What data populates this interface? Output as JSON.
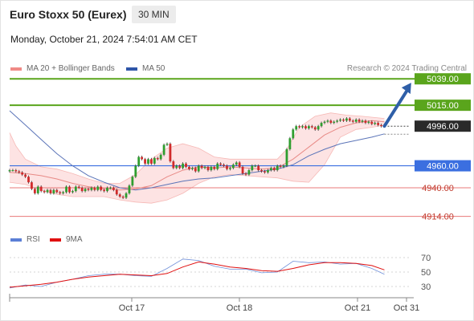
{
  "header": {
    "title": "Euro Stoxx 50 (Eurex)",
    "timeframe": "30 MIN",
    "datetime": "Monday, October 21, 2024 7:54:01 AM CET"
  },
  "legend": {
    "items": [
      {
        "label": "MA 20 + Bollinger Bands",
        "color": "#f08a86"
      },
      {
        "label": "MA 50",
        "color": "#2f56a8"
      }
    ],
    "credit": "Research © 2024 Trading Central"
  },
  "indicator_legend": {
    "items": [
      {
        "label": "RSI",
        "color": "#5b7fd6"
      },
      {
        "label": "9MA",
        "color": "#e01010"
      }
    ]
  },
  "colors": {
    "resistance": "#5aa51c",
    "pivot": "#3b6fe0",
    "support": "#e87878",
    "current": "#2a2a2a",
    "up_candle": "#2f9e2f",
    "down_candle": "#d12b2b",
    "band_fill": "#fde3e3",
    "arrow": "#2f5fa8"
  },
  "chart_data": [
    {
      "type": "candlestick",
      "ylim": [
        4905,
        5045
      ],
      "x_tick_labels": [
        "Oct 17",
        "Oct 18",
        "Oct 21",
        "Oct 31"
      ],
      "levels": [
        {
          "value": 5039.0,
          "label": "5039.00",
          "kind": "resistance"
        },
        {
          "value": 5015.0,
          "label": "5015.00",
          "kind": "resistance"
        },
        {
          "value": 4996.0,
          "label": "4996.00",
          "kind": "current"
        },
        {
          "value": 4960.0,
          "label": "4960.00",
          "kind": "pivot"
        },
        {
          "value": 4940.0,
          "label": "4940.00",
          "kind": "support"
        },
        {
          "value": 4914.0,
          "label": "4914.00",
          "kind": "support"
        }
      ],
      "candles": [
        [
          4955,
          4956
        ],
        [
          4956,
          4956
        ],
        [
          4956,
          4955
        ],
        [
          4955,
          4954
        ],
        [
          4954,
          4952
        ],
        [
          4952,
          4950
        ],
        [
          4950,
          4945
        ],
        [
          4945,
          4939
        ],
        [
          4939,
          4935
        ],
        [
          4935,
          4941
        ],
        [
          4941,
          4937
        ],
        [
          4937,
          4936
        ],
        [
          4936,
          4938
        ],
        [
          4938,
          4935
        ],
        [
          4935,
          4938
        ],
        [
          4938,
          4936
        ],
        [
          4936,
          4935
        ],
        [
          4935,
          4936
        ],
        [
          4936,
          4941
        ],
        [
          4941,
          4936
        ],
        [
          4936,
          4937
        ],
        [
          4937,
          4941
        ],
        [
          4941,
          4940
        ],
        [
          4940,
          4937
        ],
        [
          4937,
          4939
        ],
        [
          4939,
          4938
        ],
        [
          4938,
          4940
        ],
        [
          4940,
          4938
        ],
        [
          4938,
          4941
        ],
        [
          4941,
          4938
        ],
        [
          4938,
          4937
        ],
        [
          4937,
          4940
        ],
        [
          4940,
          4940
        ],
        [
          4940,
          4938
        ],
        [
          4938,
          4934
        ],
        [
          4934,
          4932
        ],
        [
          4932,
          4931
        ],
        [
          4931,
          4935
        ],
        [
          4935,
          4942
        ],
        [
          4942,
          4950
        ],
        [
          4950,
          4960
        ],
        [
          4960,
          4968
        ],
        [
          4968,
          4966
        ],
        [
          4966,
          4962
        ],
        [
          4962,
          4966
        ],
        [
          4966,
          4962
        ],
        [
          4962,
          4967
        ],
        [
          4967,
          4966
        ],
        [
          4966,
          4970
        ],
        [
          4970,
          4979
        ],
        [
          4979,
          4980
        ],
        [
          4980,
          4964
        ],
        [
          4964,
          4958
        ],
        [
          4958,
          4960
        ],
        [
          4960,
          4958
        ],
        [
          4958,
          4962
        ],
        [
          4962,
          4959
        ],
        [
          4959,
          4957
        ],
        [
          4957,
          4958
        ],
        [
          4958,
          4955
        ],
        [
          4955,
          4960
        ],
        [
          4960,
          4958
        ],
        [
          4958,
          4959
        ],
        [
          4959,
          4956
        ],
        [
          4956,
          4959
        ],
        [
          4959,
          4957
        ],
        [
          4957,
          4962
        ],
        [
          4962,
          4961
        ],
        [
          4961,
          4960
        ],
        [
          4960,
          4957
        ],
        [
          4957,
          4958
        ],
        [
          4958,
          4961
        ],
        [
          4961,
          4963
        ],
        [
          4963,
          4959
        ],
        [
          4959,
          4953
        ],
        [
          4953,
          4952
        ],
        [
          4952,
          4956
        ],
        [
          4956,
          4960
        ],
        [
          4960,
          4960
        ],
        [
          4960,
          4956
        ],
        [
          4956,
          4955
        ],
        [
          4955,
          4954
        ],
        [
          4954,
          4956
        ],
        [
          4956,
          4958
        ],
        [
          4958,
          4956
        ],
        [
          4956,
          4960
        ],
        [
          4960,
          4959
        ],
        [
          4959,
          4960
        ],
        [
          4960,
          4975
        ],
        [
          4975,
          4985
        ],
        [
          4985,
          4993
        ],
        [
          4993,
          4996
        ],
        [
          4996,
          4995
        ],
        [
          4995,
          4996
        ],
        [
          4996,
          4994
        ],
        [
          4994,
          4996
        ],
        [
          4996,
          4995
        ],
        [
          4995,
          4993
        ],
        [
          4993,
          4996
        ],
        [
          4996,
          4999
        ],
        [
          4999,
          5000
        ],
        [
          5000,
          5001
        ],
        [
          5001,
          4999
        ],
        [
          4999,
          5000
        ],
        [
          5000,
          5001
        ],
        [
          5001,
          5002
        ],
        [
          5002,
          5001
        ],
        [
          5001,
          5003
        ],
        [
          5003,
          5001
        ],
        [
          5001,
          5000
        ],
        [
          5000,
          5002
        ],
        [
          5002,
          5000
        ],
        [
          5000,
          5001
        ],
        [
          5001,
          4999
        ],
        [
          4999,
          5000
        ],
        [
          5000,
          4998
        ],
        [
          4998,
          4999
        ],
        [
          4999,
          4997
        ],
        [
          4997,
          4996
        ]
      ],
      "ma20": [
        [
          0,
          4954
        ],
        [
          5,
          4953
        ],
        [
          10,
          4951
        ],
        [
          15,
          4948
        ],
        [
          20,
          4944
        ],
        [
          25,
          4941
        ],
        [
          30,
          4939
        ],
        [
          35,
          4938
        ],
        [
          40,
          4939
        ],
        [
          45,
          4942
        ],
        [
          50,
          4950
        ],
        [
          55,
          4956
        ],
        [
          60,
          4959
        ],
        [
          65,
          4958
        ],
        [
          70,
          4959
        ],
        [
          75,
          4958
        ],
        [
          80,
          4957
        ],
        [
          85,
          4958
        ],
        [
          90,
          4966
        ],
        [
          95,
          4977
        ],
        [
          100,
          4988
        ],
        [
          105,
          4995
        ],
        [
          110,
          4999
        ],
        [
          115,
          5001
        ],
        [
          119,
          5000
        ]
      ],
      "bb_upper": [
        [
          0,
          4990
        ],
        [
          2,
          4978
        ],
        [
          5,
          4966
        ],
        [
          10,
          4959
        ],
        [
          15,
          4957
        ],
        [
          20,
          4953
        ],
        [
          25,
          4948
        ],
        [
          30,
          4944
        ],
        [
          35,
          4944
        ],
        [
          40,
          4952
        ],
        [
          45,
          4966
        ],
        [
          50,
          4976
        ],
        [
          55,
          4980
        ],
        [
          60,
          4976
        ],
        [
          65,
          4968
        ],
        [
          70,
          4966
        ],
        [
          75,
          4966
        ],
        [
          80,
          4966
        ],
        [
          85,
          4966
        ],
        [
          88,
          4975
        ],
        [
          92,
          4995
        ],
        [
          97,
          5005
        ],
        [
          102,
          5008
        ],
        [
          107,
          5006
        ],
        [
          112,
          5005
        ],
        [
          119,
          5003
        ]
      ],
      "bb_lower": [
        [
          0,
          4945
        ],
        [
          5,
          4943
        ],
        [
          10,
          4938
        ],
        [
          15,
          4934
        ],
        [
          20,
          4932
        ],
        [
          25,
          4932
        ],
        [
          30,
          4932
        ],
        [
          35,
          4929
        ],
        [
          40,
          4927
        ],
        [
          45,
          4926
        ],
        [
          50,
          4929
        ],
        [
          55,
          4935
        ],
        [
          60,
          4944
        ],
        [
          65,
          4950
        ],
        [
          70,
          4952
        ],
        [
          75,
          4951
        ],
        [
          80,
          4950
        ],
        [
          85,
          4949
        ],
        [
          90,
          4946
        ],
        [
          95,
          4945
        ],
        [
          100,
          4961
        ],
        [
          105,
          4986
        ],
        [
          110,
          4993
        ],
        [
          115,
          4995
        ],
        [
          119,
          4997
        ]
      ],
      "ma50": [
        [
          0,
          5010
        ],
        [
          5,
          4997
        ],
        [
          10,
          4984
        ],
        [
          15,
          4971
        ],
        [
          20,
          4960
        ],
        [
          25,
          4951
        ],
        [
          30,
          4945
        ],
        [
          35,
          4940
        ],
        [
          40,
          4938
        ],
        [
          45,
          4940
        ],
        [
          50,
          4943
        ],
        [
          55,
          4946
        ],
        [
          60,
          4948
        ],
        [
          65,
          4949
        ],
        [
          70,
          4951
        ],
        [
          75,
          4953
        ],
        [
          80,
          4955
        ],
        [
          85,
          4957
        ],
        [
          90,
          4961
        ],
        [
          95,
          4969
        ],
        [
          100,
          4975
        ],
        [
          105,
          4980
        ],
        [
          110,
          4983
        ],
        [
          115,
          4986
        ],
        [
          119,
          4989
        ]
      ],
      "projection": {
        "from": [
          119,
          4996
        ],
        "to": [
          127,
          5034
        ]
      }
    },
    {
      "type": "line",
      "title": "RSI",
      "ylim": [
        20,
        80
      ],
      "y_ticks": [
        30,
        50,
        70
      ],
      "series": [
        {
          "name": "RSI",
          "values": [
            [
              0,
              28
            ],
            [
              5,
              32
            ],
            [
              10,
              30
            ],
            [
              15,
              36
            ],
            [
              20,
              40
            ],
            [
              25,
              45
            ],
            [
              30,
              47
            ],
            [
              35,
              47
            ],
            [
              40,
              45
            ],
            [
              45,
              44
            ],
            [
              50,
              55
            ],
            [
              55,
              68
            ],
            [
              60,
              66
            ],
            [
              65,
              58
            ],
            [
              70,
              54
            ],
            [
              75,
              54
            ],
            [
              80,
              49
            ],
            [
              85,
              50
            ],
            [
              90,
              65
            ],
            [
              95,
              63
            ],
            [
              100,
              64
            ],
            [
              105,
              61
            ],
            [
              110,
              62
            ],
            [
              115,
              55
            ],
            [
              119,
              47
            ]
          ]
        },
        {
          "name": "9MA",
          "values": [
            [
              0,
              29
            ],
            [
              5,
              31
            ],
            [
              10,
              33
            ],
            [
              15,
              36
            ],
            [
              20,
              40
            ],
            [
              25,
              43
            ],
            [
              30,
              45
            ],
            [
              35,
              47
            ],
            [
              40,
              46
            ],
            [
              45,
              45
            ],
            [
              50,
              48
            ],
            [
              55,
              57
            ],
            [
              60,
              64
            ],
            [
              65,
              61
            ],
            [
              70,
              57
            ],
            [
              75,
              55
            ],
            [
              80,
              52
            ],
            [
              85,
              51
            ],
            [
              90,
              55
            ],
            [
              95,
              60
            ],
            [
              100,
              63
            ],
            [
              105,
              63
            ],
            [
              110,
              62
            ],
            [
              115,
              59
            ],
            [
              119,
              53
            ]
          ]
        }
      ]
    }
  ]
}
